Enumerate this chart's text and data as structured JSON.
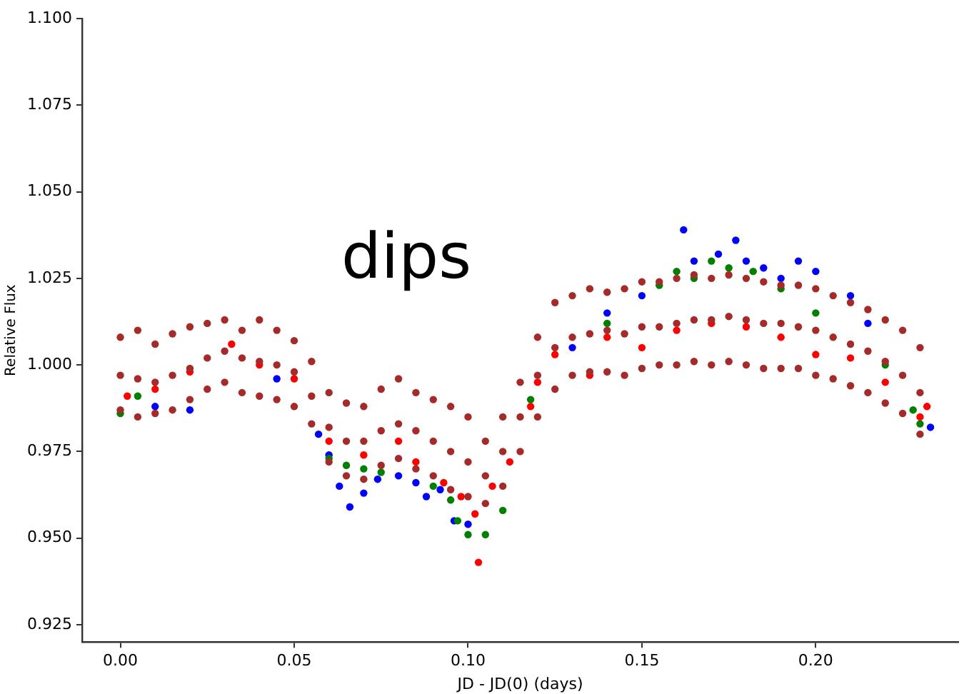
{
  "chart_data": {
    "type": "scatter",
    "xlabel": "JD - JD(0) (days)",
    "ylabel": "Relative Flux",
    "annotations": [
      "dips"
    ],
    "xlim": [
      -0.011,
      0.241
    ],
    "ylim": [
      0.92,
      1.1
    ],
    "xticks": [
      {
        "value": 0,
        "label": "0.00"
      },
      0.05,
      {
        "value": 0.1,
        "label": "0.10"
      },
      0.15,
      {
        "value": 0.2,
        "label": "0.20"
      }
    ],
    "yticks": [
      0.925,
      {
        "value": 0.95,
        "label": "0.950"
      },
      0.975,
      {
        "value": 1.0,
        "label": "1.000"
      },
      1.025,
      {
        "value": 1.05,
        "label": "1.050"
      },
      1.075,
      {
        "value": 1.1,
        "label": "1.100"
      }
    ],
    "grid": false,
    "legend": false,
    "marker": "circle",
    "series": [
      {
        "color": "#0000ff",
        "x": [
          0.01,
          0.02,
          0.045,
          0.057,
          0.06,
          0.063,
          0.066,
          0.07,
          0.074,
          0.08,
          0.085,
          0.088,
          0.092,
          0.096,
          0.1,
          0.13,
          0.14,
          0.15,
          0.162,
          0.165,
          0.172,
          0.177,
          0.18,
          0.185,
          0.19,
          0.195,
          0.2,
          0.21,
          0.215,
          0.233
        ],
        "values": [
          0.988,
          0.987,
          0.996,
          0.98,
          0.974,
          0.965,
          0.959,
          0.963,
          0.967,
          0.968,
          0.966,
          0.962,
          0.964,
          0.955,
          0.954,
          1.005,
          1.015,
          1.02,
          1.039,
          1.03,
          1.032,
          1.036,
          1.03,
          1.028,
          1.025,
          1.03,
          1.027,
          1.02,
          1.012,
          0.982
        ]
      },
      {
        "color": "#008000",
        "x": [
          0.0,
          0.005,
          0.06,
          0.065,
          0.07,
          0.075,
          0.09,
          0.095,
          0.097,
          0.1,
          0.105,
          0.11,
          0.118,
          0.14,
          0.155,
          0.16,
          0.165,
          0.17,
          0.175,
          0.182,
          0.19,
          0.2,
          0.22,
          0.228,
          0.23
        ],
        "values": [
          0.986,
          0.991,
          0.973,
          0.971,
          0.97,
          0.969,
          0.965,
          0.961,
          0.955,
          0.951,
          0.951,
          0.958,
          0.99,
          1.012,
          1.023,
          1.027,
          1.025,
          1.03,
          1.028,
          1.027,
          1.022,
          1.015,
          1.0,
          0.987,
          0.983
        ]
      },
      {
        "color": "#ff0000",
        "x": [
          0.002,
          0.01,
          0.02,
          0.032,
          0.04,
          0.05,
          0.06,
          0.07,
          0.08,
          0.085,
          0.093,
          0.098,
          0.102,
          0.103,
          0.107,
          0.112,
          0.118,
          0.12,
          0.125,
          0.135,
          0.14,
          0.15,
          0.16,
          0.17,
          0.18,
          0.19,
          0.2,
          0.21,
          0.22,
          0.23,
          0.232
        ],
        "values": [
          0.991,
          0.993,
          0.998,
          1.006,
          1.0,
          0.996,
          0.978,
          0.974,
          0.978,
          0.972,
          0.966,
          0.962,
          0.957,
          0.943,
          0.965,
          0.972,
          0.988,
          0.995,
          1.003,
          0.997,
          1.008,
          1.005,
          1.01,
          1.012,
          1.011,
          1.008,
          1.003,
          1.002,
          0.995,
          0.985,
          0.988
        ]
      },
      {
        "color": "#a52a2a",
        "x": [
          0,
          0,
          0,
          0.005,
          0.005,
          0.005,
          0.01,
          0.01,
          0.01,
          0.015,
          0.015,
          0.015,
          0.02,
          0.02,
          0.02,
          0.025,
          0.025,
          0.025,
          0.03,
          0.03,
          0.03,
          0.035,
          0.035,
          0.035,
          0.04,
          0.04,
          0.04,
          0.045,
          0.045,
          0.045,
          0.05,
          0.05,
          0.05,
          0.055,
          0.055,
          0.055,
          0.06,
          0.06,
          0.06,
          0.065,
          0.065,
          0.065,
          0.07,
          0.07,
          0.07,
          0.075,
          0.075,
          0.075,
          0.08,
          0.08,
          0.08,
          0.085,
          0.085,
          0.085,
          0.09,
          0.09,
          0.09,
          0.095,
          0.095,
          0.095,
          0.1,
          0.1,
          0.1,
          0.105,
          0.105,
          0.105,
          0.11,
          0.11,
          0.11,
          0.115,
          0.115,
          0.115,
          0.12,
          0.12,
          0.12,
          0.125,
          0.125,
          0.125,
          0.13,
          0.13,
          0.13,
          0.135,
          0.135,
          0.135,
          0.14,
          0.14,
          0.14,
          0.145,
          0.145,
          0.145,
          0.15,
          0.15,
          0.15,
          0.155,
          0.155,
          0.155,
          0.16,
          0.16,
          0.16,
          0.165,
          0.165,
          0.165,
          0.17,
          0.17,
          0.17,
          0.175,
          0.175,
          0.175,
          0.18,
          0.18,
          0.18,
          0.185,
          0.185,
          0.185,
          0.19,
          0.19,
          0.19,
          0.195,
          0.195,
          0.195,
          0.2,
          0.2,
          0.2,
          0.205,
          0.205,
          0.205,
          0.21,
          0.21,
          0.21,
          0.215,
          0.215,
          0.215,
          0.22,
          0.22,
          0.22,
          0.225,
          0.225,
          0.225,
          0.23,
          0.23,
          0.23
        ],
        "values": [
          1.008,
          0.997,
          0.987,
          1.01,
          0.996,
          0.985,
          1.006,
          0.995,
          0.986,
          1.009,
          0.997,
          0.987,
          1.011,
          0.999,
          0.99,
          1.012,
          1.002,
          0.993,
          1.013,
          1.004,
          0.995,
          1.01,
          1.002,
          0.992,
          1.013,
          1.001,
          0.991,
          1.01,
          1.0,
          0.99,
          1.007,
          0.998,
          0.988,
          1.001,
          0.991,
          0.983,
          0.992,
          0.982,
          0.972,
          0.989,
          0.978,
          0.968,
          0.988,
          0.978,
          0.967,
          0.993,
          0.981,
          0.971,
          0.996,
          0.983,
          0.973,
          0.992,
          0.981,
          0.97,
          0.99,
          0.978,
          0.968,
          0.988,
          0.975,
          0.964,
          0.985,
          0.972,
          0.962,
          0.978,
          0.968,
          0.96,
          0.985,
          0.975,
          0.965,
          0.995,
          0.985,
          0.975,
          1.008,
          0.997,
          0.985,
          1.018,
          1.005,
          0.993,
          1.02,
          1.008,
          0.997,
          1.022,
          1.009,
          0.998,
          1.021,
          1.01,
          0.998,
          1.022,
          1.009,
          0.997,
          1.024,
          1.011,
          0.999,
          1.024,
          1.011,
          1.0,
          1.025,
          1.012,
          1.0,
          1.026,
          1.013,
          1.001,
          1.025,
          1.013,
          1.0,
          1.026,
          1.014,
          1.001,
          1.025,
          1.013,
          1.0,
          1.024,
          1.012,
          0.999,
          1.023,
          1.012,
          0.999,
          1.023,
          1.011,
          0.999,
          1.022,
          1.01,
          0.997,
          1.02,
          1.008,
          0.996,
          1.018,
          1.006,
          0.994,
          1.016,
          1.004,
          0.992,
          1.013,
          1.001,
          0.989,
          1.01,
          0.997,
          0.986,
          1.005,
          0.992,
          0.98
        ]
      }
    ]
  }
}
